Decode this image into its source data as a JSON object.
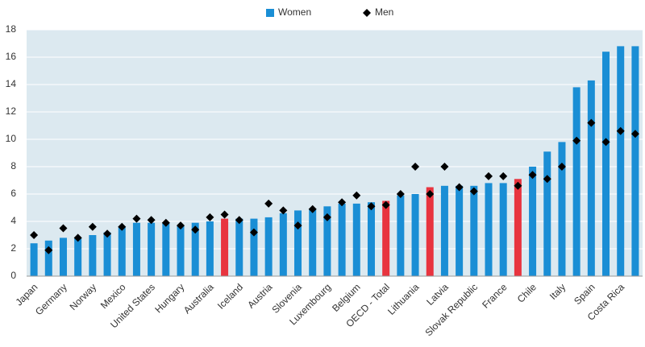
{
  "chart_data": {
    "type": "bar",
    "categories": [
      "Japan",
      null,
      "Germany",
      null,
      "Norway",
      null,
      "Mexico",
      null,
      "United States",
      null,
      "Hungary",
      null,
      "Australia",
      null,
      "Iceland",
      null,
      "Austria",
      null,
      "Slovenia",
      null,
      "Luxembourg",
      null,
      "Belgium",
      null,
      "OECD - Total",
      null,
      "Lithuania",
      null,
      "Latvia",
      null,
      "Slovak Republic",
      null,
      "France",
      null,
      "Chile",
      null,
      "Italy",
      null,
      "Spain",
      null,
      "Costa Rica",
      null
    ],
    "series": [
      {
        "name": "Women",
        "type": "bar",
        "color": "#1a8ed5",
        "colors": [
          "#1a8ed5",
          "#1a8ed5",
          "#1a8ed5",
          "#1a8ed5",
          "#1a8ed5",
          "#1a8ed5",
          "#1a8ed5",
          "#1a8ed5",
          "#1a8ed5",
          "#1a8ed5",
          "#1a8ed5",
          "#1a8ed5",
          "#1a8ed5",
          "#e8343f",
          "#1a8ed5",
          "#1a8ed5",
          "#1a8ed5",
          "#1a8ed5",
          "#1a8ed5",
          "#1a8ed5",
          "#1a8ed5",
          "#1a8ed5",
          "#1a8ed5",
          "#1a8ed5",
          "#e8343f",
          "#1a8ed5",
          "#1a8ed5",
          "#e8343f",
          "#1a8ed5",
          "#1a8ed5",
          "#1a8ed5",
          "#1a8ed5",
          "#1a8ed5",
          "#e8343f",
          "#1a8ed5",
          "#1a8ed5",
          "#1a8ed5",
          "#1a8ed5",
          "#1a8ed5",
          "#1a8ed5",
          "#1a8ed5",
          "#1a8ed5"
        ],
        "values": [
          2.4,
          2.6,
          2.8,
          2.8,
          3.0,
          3.2,
          3.6,
          3.9,
          3.9,
          3.9,
          3.7,
          3.9,
          4.0,
          4.2,
          4.2,
          4.2,
          4.3,
          4.6,
          4.8,
          4.9,
          5.1,
          5.3,
          5.3,
          5.4,
          5.5,
          5.9,
          6.0,
          6.5,
          6.6,
          6.6,
          6.6,
          6.8,
          6.8,
          7.1,
          8.0,
          9.1,
          9.8,
          13.8,
          14.3,
          16.4,
          16.8,
          16.8
        ]
      },
      {
        "name": "Men",
        "type": "scatter",
        "marker": "diamond",
        "color": "#000000",
        "values": [
          3.0,
          1.9,
          3.5,
          2.8,
          3.6,
          3.1,
          3.6,
          4.2,
          4.1,
          3.9,
          3.7,
          3.4,
          4.3,
          4.5,
          4.1,
          3.2,
          5.3,
          4.8,
          3.7,
          4.9,
          4.3,
          5.4,
          5.9,
          5.1,
          5.2,
          6.0,
          8.0,
          6.0,
          8.0,
          6.5,
          6.2,
          7.3,
          7.3,
          6.6,
          7.4,
          7.1,
          8.0,
          9.9,
          11.2,
          9.8,
          10.6,
          10.4
        ]
      }
    ],
    "ylim": [
      0,
      18
    ],
    "yticks": [
      0,
      2,
      4,
      6,
      8,
      10,
      12,
      14,
      16,
      18
    ],
    "grid": true,
    "legend": "top",
    "plot_background": "#dce9f0"
  }
}
